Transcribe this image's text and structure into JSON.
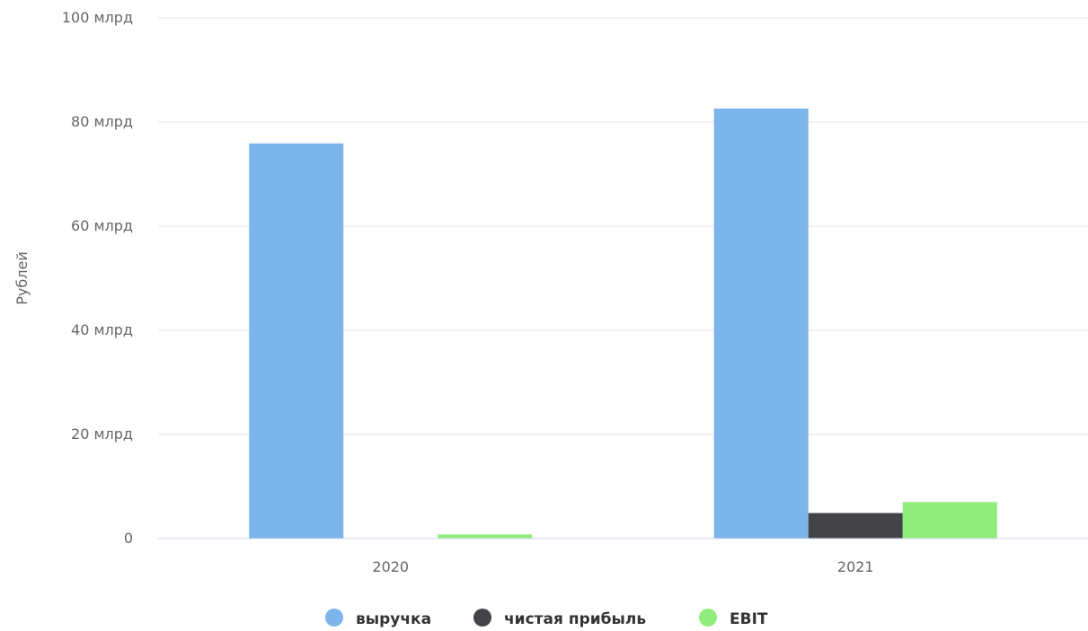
{
  "chart_data": {
    "type": "bar",
    "title": "",
    "xlabel": "",
    "ylabel": "Рублей",
    "categories": [
      "2020",
      "2021"
    ],
    "ylim": [
      0,
      100
    ],
    "y_unit": "млрд",
    "y_ticks": [
      {
        "value": 0,
        "label": "0"
      },
      {
        "value": 20,
        "label": "20 млрд"
      },
      {
        "value": 40,
        "label": "40 млрд"
      },
      {
        "value": 60,
        "label": "60 млрд"
      },
      {
        "value": 80,
        "label": "80 млрд"
      },
      {
        "value": 100,
        "label": "100 млрд"
      }
    ],
    "series": [
      {
        "name": "выручка",
        "color": "#7cb5ec",
        "values": [
          75.9,
          82.6
        ]
      },
      {
        "name": "чистая прибыль",
        "color": "#434348",
        "values": [
          0.0,
          4.9
        ]
      },
      {
        "name": "EBIT",
        "color": "#90ed7d",
        "values": [
          0.8,
          7.0
        ]
      }
    ],
    "grid": true,
    "legend_position": "bottom-center"
  }
}
